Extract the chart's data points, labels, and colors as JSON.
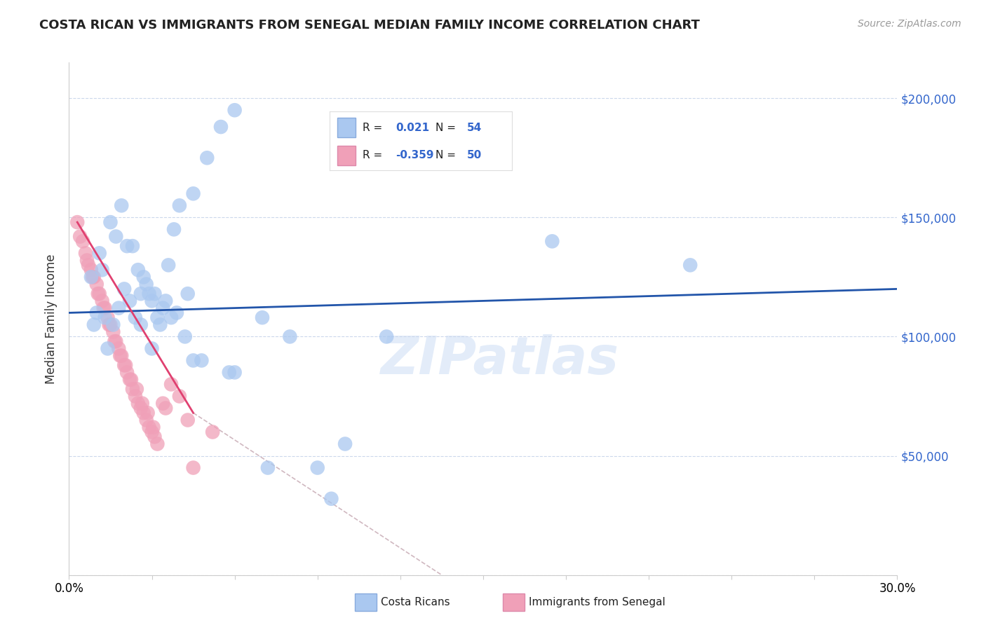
{
  "title": "COSTA RICAN VS IMMIGRANTS FROM SENEGAL MEDIAN FAMILY INCOME CORRELATION CHART",
  "source": "Source: ZipAtlas.com",
  "ylabel": "Median Family Income",
  "y_ticks": [
    0,
    50000,
    100000,
    150000,
    200000
  ],
  "y_tick_labels": [
    "",
    "$50,000",
    "$100,000",
    "$150,000",
    "$200,000"
  ],
  "x_range": [
    0.0,
    30.0
  ],
  "y_range": [
    0,
    215000
  ],
  "watermark": "ZIPatlas",
  "blue_color": "#aac8f0",
  "pink_color": "#f0a0b8",
  "blue_line_color": "#2255aa",
  "pink_line_color": "#e04070",
  "dashed_line_color": "#d0b8c0",
  "blue_scatter_x": [
    1.0,
    1.3,
    1.6,
    1.8,
    2.0,
    2.2,
    2.4,
    2.6,
    2.8,
    3.0,
    3.2,
    3.4,
    3.6,
    3.8,
    4.0,
    4.5,
    5.0,
    5.5,
    6.0,
    0.8,
    1.1,
    1.5,
    1.9,
    2.3,
    2.7,
    3.1,
    3.5,
    3.9,
    4.3,
    1.2,
    1.7,
    2.1,
    2.5,
    2.9,
    3.3,
    3.7,
    4.2,
    4.8,
    5.8,
    7.2,
    9.5,
    11.5,
    17.5,
    22.5,
    0.9,
    1.4,
    2.6,
    3.0,
    4.5,
    6.0,
    7.0,
    8.0,
    9.0,
    10.0
  ],
  "blue_scatter_y": [
    110000,
    108000,
    105000,
    112000,
    120000,
    115000,
    108000,
    118000,
    122000,
    115000,
    108000,
    112000,
    130000,
    145000,
    155000,
    160000,
    175000,
    188000,
    195000,
    125000,
    135000,
    148000,
    155000,
    138000,
    125000,
    118000,
    115000,
    110000,
    118000,
    128000,
    142000,
    138000,
    128000,
    118000,
    105000,
    108000,
    100000,
    90000,
    85000,
    45000,
    32000,
    100000,
    140000,
    130000,
    105000,
    95000,
    105000,
    95000,
    90000,
    85000,
    108000,
    100000,
    45000,
    55000
  ],
  "pink_scatter_x": [
    0.3,
    0.5,
    0.6,
    0.7,
    0.8,
    0.9,
    1.0,
    1.1,
    1.2,
    1.3,
    1.4,
    1.5,
    1.6,
    1.7,
    1.8,
    1.9,
    2.0,
    2.1,
    2.2,
    2.3,
    2.4,
    2.5,
    2.6,
    2.7,
    2.8,
    2.9,
    3.0,
    3.1,
    3.2,
    3.4,
    3.7,
    4.0,
    4.3,
    0.4,
    0.65,
    0.85,
    1.05,
    1.25,
    1.45,
    1.65,
    1.85,
    2.05,
    2.25,
    2.45,
    2.65,
    2.85,
    3.05,
    3.5,
    4.5,
    5.2
  ],
  "pink_scatter_y": [
    148000,
    140000,
    135000,
    130000,
    128000,
    125000,
    122000,
    118000,
    115000,
    112000,
    108000,
    105000,
    102000,
    98000,
    95000,
    92000,
    88000,
    85000,
    82000,
    78000,
    75000,
    72000,
    70000,
    68000,
    65000,
    62000,
    60000,
    58000,
    55000,
    72000,
    80000,
    75000,
    65000,
    142000,
    132000,
    125000,
    118000,
    112000,
    105000,
    98000,
    92000,
    88000,
    82000,
    78000,
    72000,
    68000,
    62000,
    70000,
    45000,
    60000
  ],
  "blue_line_x": [
    0.0,
    30.0
  ],
  "blue_line_y": [
    110000,
    120000
  ],
  "pink_line_x": [
    0.3,
    4.5
  ],
  "pink_line_y": [
    148000,
    68000
  ],
  "dash_line_x": [
    4.5,
    13.5
  ],
  "dash_line_y": [
    68000,
    0
  ],
  "x_ticks": [
    0,
    3,
    6,
    9,
    12,
    15,
    18,
    21,
    24,
    27,
    30
  ],
  "x_tick_labels": [
    "0.0%",
    "",
    "",
    "",
    "",
    "",
    "",
    "",
    "",
    "",
    "30.0%"
  ]
}
